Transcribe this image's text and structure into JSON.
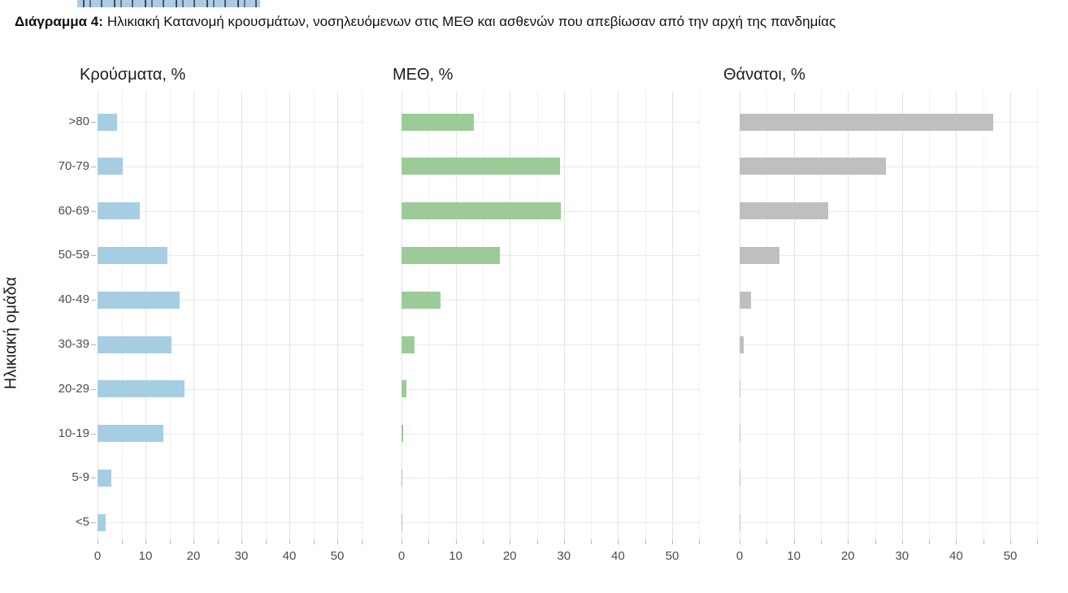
{
  "caption": {
    "label": "Διάγραμμα 4:",
    "text": "Ηλικιακή Κατανομή κρουσμάτων, νοσηλευόμενων στις ΜΕΘ και ασθενών που απεβίωσαν από την αρχή της πανδημίας"
  },
  "chart_data": [
    {
      "type": "bar",
      "orientation": "horizontal",
      "title": "Κρούσματα, %",
      "xlabel": "",
      "ylabel": "Ηλικιακή ομάδα",
      "categories": [
        ">80",
        "70-79",
        "60-69",
        "50-59",
        "40-49",
        "30-39",
        "20-29",
        "10-19",
        "5-9",
        "<5"
      ],
      "values": [
        4.1,
        5.3,
        8.8,
        14.6,
        17.2,
        15.5,
        18.2,
        13.7,
        2.8,
        1.7
      ],
      "xlim": [
        0,
        55
      ],
      "xticks": [
        0,
        10,
        20,
        30,
        40,
        50
      ],
      "xtick_minor_step": 5,
      "bar_color": "#a6cee3",
      "grid": true,
      "legend": false
    },
    {
      "type": "bar",
      "orientation": "horizontal",
      "title": "ΜΕΘ, %",
      "xlabel": "",
      "ylabel": "",
      "categories": [
        ">80",
        "70-79",
        "60-69",
        "50-59",
        "40-49",
        "30-39",
        "20-29",
        "10-19",
        "5-9",
        "<5"
      ],
      "values": [
        13.3,
        29.3,
        29.5,
        18.1,
        7.2,
        2.4,
        0.9,
        0.3,
        0.1,
        0.15
      ],
      "xlim": [
        0,
        55
      ],
      "xticks": [
        0,
        10,
        20,
        30,
        40,
        50
      ],
      "xtick_minor_step": 5,
      "bar_color": "#9ccb98",
      "grid": true,
      "legend": false
    },
    {
      "type": "bar",
      "orientation": "horizontal",
      "title": "Θάνατοι, %",
      "xlabel": "",
      "ylabel": "",
      "categories": [
        ">80",
        "70-79",
        "60-69",
        "50-59",
        "40-49",
        "30-39",
        "20-29",
        "10-19",
        "5-9",
        "<5"
      ],
      "values": [
        46.8,
        27.1,
        16.4,
        7.4,
        2.1,
        0.7,
        0.2,
        0.1,
        0.05,
        0.1
      ],
      "xlim": [
        0,
        55
      ],
      "xticks": [
        0,
        10,
        20,
        30,
        40,
        50
      ],
      "xtick_minor_step": 5,
      "bar_color": "#bfbfbf",
      "grid": true,
      "legend": false
    }
  ]
}
